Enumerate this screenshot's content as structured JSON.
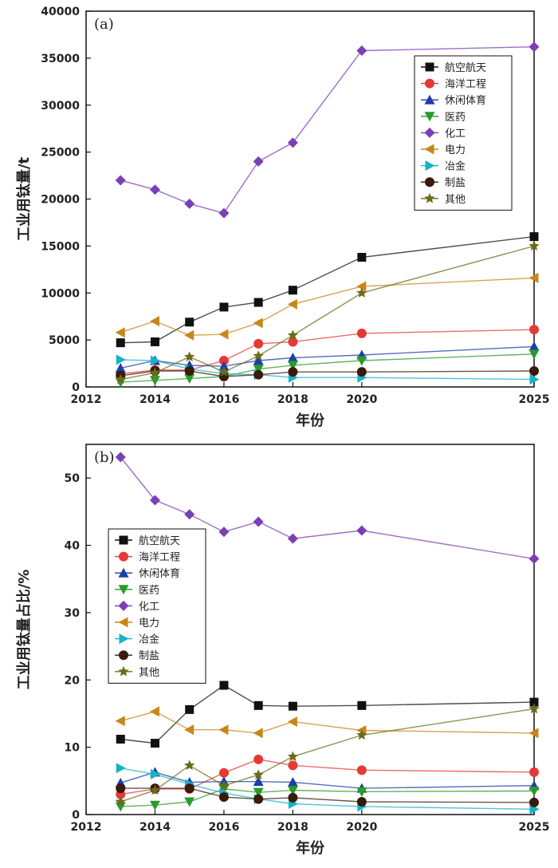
{
  "palette": {
    "航空航天": "#111111",
    "海洋工程": "#e53935",
    "休闲体育": "#1c3fa8",
    "医药": "#2a9a2a",
    "化工": "#7b3fb5",
    "电力": "#c8861a",
    "冶金": "#17b2c8",
    "制盐": "#3a1a0a",
    "其他": "#6b6b1a"
  },
  "chart_data": [
    {
      "panel_label": "(a)",
      "type": "line",
      "xlabel": "年份",
      "ylabel": "工业用钛量/t",
      "xlim": [
        2012,
        2025
      ],
      "ylim": [
        0,
        40000
      ],
      "xticks": [
        2012,
        2014,
        2016,
        2018,
        2020,
        2025
      ],
      "yticks": [
        0,
        5000,
        10000,
        15000,
        20000,
        25000,
        30000,
        35000,
        40000
      ],
      "x": [
        2013,
        2014,
        2015,
        2016,
        2017,
        2018,
        2020,
        2025
      ],
      "legend_position": "top-right",
      "series": [
        {
          "name": "航空航天",
          "marker": "square",
          "values": [
            4700,
            4800,
            6900,
            8500,
            9000,
            10300,
            13800,
            16000
          ]
        },
        {
          "name": "海洋工程",
          "marker": "circle",
          "values": [
            1400,
            1800,
            1800,
            2800,
            4600,
            4800,
            5700,
            6100
          ]
        },
        {
          "name": "休闲体育",
          "marker": "triangle-up",
          "values": [
            2000,
            2800,
            2300,
            2200,
            2800,
            3100,
            3400,
            4300
          ]
        },
        {
          "name": "医药",
          "marker": "triangle-down",
          "values": [
            500,
            700,
            900,
            1100,
            1900,
            2300,
            2800,
            3500
          ]
        },
        {
          "name": "化工",
          "marker": "diamond",
          "values": [
            22000,
            21000,
            19500,
            18500,
            24000,
            26000,
            35800,
            36200
          ]
        },
        {
          "name": "电力",
          "marker": "triangle-left",
          "values": [
            5800,
            7000,
            5500,
            5600,
            6800,
            8800,
            10700,
            11600
          ]
        },
        {
          "name": "冶金",
          "marker": "triangle-right",
          "values": [
            2900,
            2800,
            1900,
            1400,
            1300,
            1000,
            1000,
            800
          ]
        },
        {
          "name": "制盐",
          "marker": "circle",
          "values": [
            1200,
            1700,
            1700,
            1100,
            1300,
            1600,
            1600,
            1700
          ]
        },
        {
          "name": "其他",
          "marker": "star",
          "values": [
            800,
            1500,
            3200,
            1600,
            3300,
            5500,
            10000,
            15000
          ]
        }
      ]
    },
    {
      "panel_label": "(b)",
      "type": "line",
      "xlabel": "年份",
      "ylabel": "工业用钛量占比/%",
      "xlim": [
        2012,
        2025
      ],
      "ylim": [
        0,
        55
      ],
      "xticks": [
        2012,
        2014,
        2016,
        2018,
        2020,
        2025
      ],
      "yticks": [
        0,
        10,
        20,
        30,
        40,
        50
      ],
      "x": [
        2013,
        2014,
        2015,
        2016,
        2017,
        2018,
        2020,
        2025
      ],
      "legend_position": "top-left",
      "series": [
        {
          "name": "航空航天",
          "marker": "square",
          "values": [
            11.2,
            10.6,
            15.6,
            19.2,
            16.2,
            16.1,
            16.2,
            16.7
          ]
        },
        {
          "name": "海洋工程",
          "marker": "circle",
          "values": [
            3.0,
            3.8,
            3.8,
            6.2,
            8.2,
            7.3,
            6.6,
            6.3
          ]
        },
        {
          "name": "休闲体育",
          "marker": "triangle-up",
          "values": [
            4.7,
            6.3,
            4.8,
            4.9,
            4.9,
            4.8,
            3.9,
            4.3
          ]
        },
        {
          "name": "医药",
          "marker": "triangle-down",
          "values": [
            1.2,
            1.4,
            1.9,
            3.8,
            3.3,
            3.6,
            3.4,
            3.5
          ]
        },
        {
          "name": "化工",
          "marker": "diamond",
          "values": [
            53.1,
            46.7,
            44.6,
            42.0,
            43.5,
            41.0,
            42.2,
            38.0
          ]
        },
        {
          "name": "电力",
          "marker": "triangle-left",
          "values": [
            13.9,
            15.3,
            12.6,
            12.6,
            12.1,
            13.8,
            12.5,
            12.1
          ]
        },
        {
          "name": "冶金",
          "marker": "triangle-right",
          "values": [
            6.9,
            6.0,
            4.5,
            3.2,
            2.3,
            1.6,
            1.2,
            0.8
          ]
        },
        {
          "name": "制盐",
          "marker": "circle",
          "values": [
            3.9,
            3.9,
            3.9,
            2.6,
            2.3,
            2.5,
            1.9,
            1.8
          ]
        },
        {
          "name": "其他",
          "marker": "star",
          "values": [
            1.9,
            3.6,
            7.3,
            4.3,
            5.9,
            8.6,
            11.8,
            15.7
          ]
        }
      ]
    }
  ]
}
